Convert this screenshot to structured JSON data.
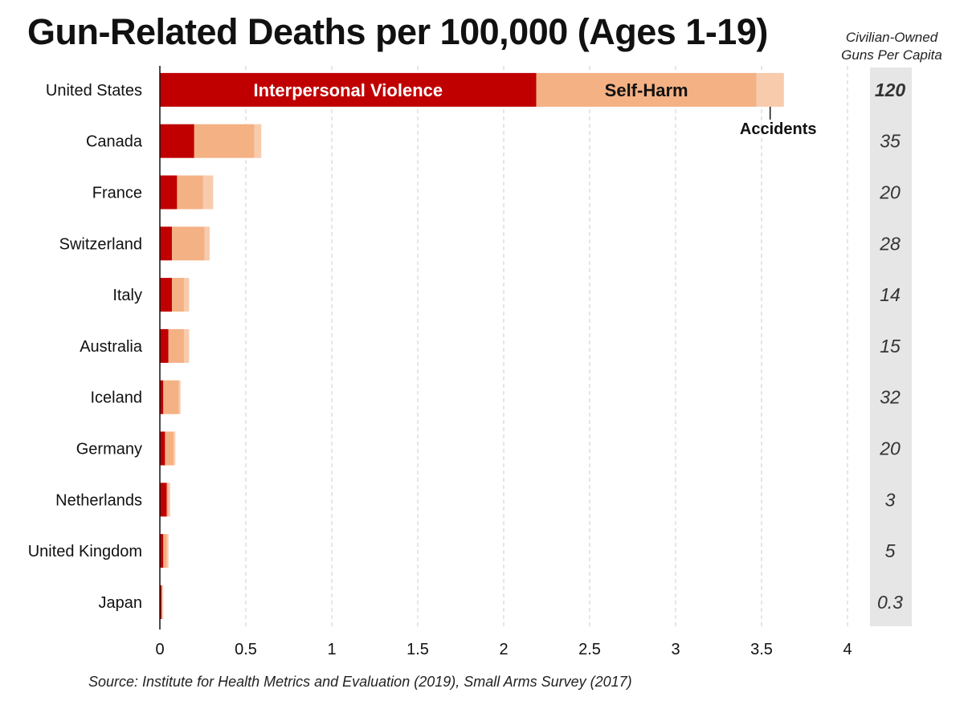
{
  "title": "Gun-Related Deaths per 100,000 (Ages 1-19)",
  "side_header": [
    "Civilian-Owned",
    "Guns Per Capita"
  ],
  "source": "Source: Institute for Health Metrics and Evaluation (2019), Small Arms Survey (2017)",
  "colors": {
    "interpersonal": "#c00000",
    "self_harm": "#f4b183",
    "accidents": "#f8cbad",
    "grid": "#cccccc",
    "side_panel": "#e6e6e6"
  },
  "chart_data": {
    "type": "bar",
    "orientation": "horizontal",
    "stacked": true,
    "title": "Gun-Related Deaths per 100,000 (Ages 1-19)",
    "categories": [
      "United States",
      "Canada",
      "France",
      "Switzerland",
      "Italy",
      "Australia",
      "Iceland",
      "Germany",
      "Netherlands",
      "United Kingdom",
      "Japan"
    ],
    "series": [
      {
        "name": "Interpersonal Violence",
        "values": [
          2.19,
          0.2,
          0.1,
          0.07,
          0.07,
          0.05,
          0.02,
          0.03,
          0.04,
          0.02,
          0.01
        ]
      },
      {
        "name": "Self-Harm",
        "values": [
          1.28,
          0.35,
          0.15,
          0.19,
          0.07,
          0.09,
          0.09,
          0.05,
          0.01,
          0.02,
          0.005
        ]
      },
      {
        "name": "Accidents",
        "values": [
          0.16,
          0.04,
          0.06,
          0.03,
          0.03,
          0.03,
          0.01,
          0.01,
          0.01,
          0.01,
          0.005
        ]
      }
    ],
    "series_labels": {
      "interpersonal": "Interpersonal Violence",
      "self_harm": "Self-Harm",
      "accidents": "Accidents"
    },
    "x_ticks": [
      0,
      0.5,
      1,
      1.5,
      2,
      2.5,
      3,
      3.5,
      4
    ],
    "x_tick_labels": [
      "0",
      "0.5",
      "1",
      "1.5",
      "2",
      "2.5",
      "3",
      "3.5",
      "4"
    ],
    "xlim": [
      0,
      4
    ],
    "grid": "vertical-dashed",
    "legend": "inline labels on United States bar",
    "guns_per_capita": [
      "120",
      "35",
      "20",
      "28",
      "14",
      "15",
      "32",
      "20",
      "3",
      "5",
      "0.3"
    ]
  }
}
